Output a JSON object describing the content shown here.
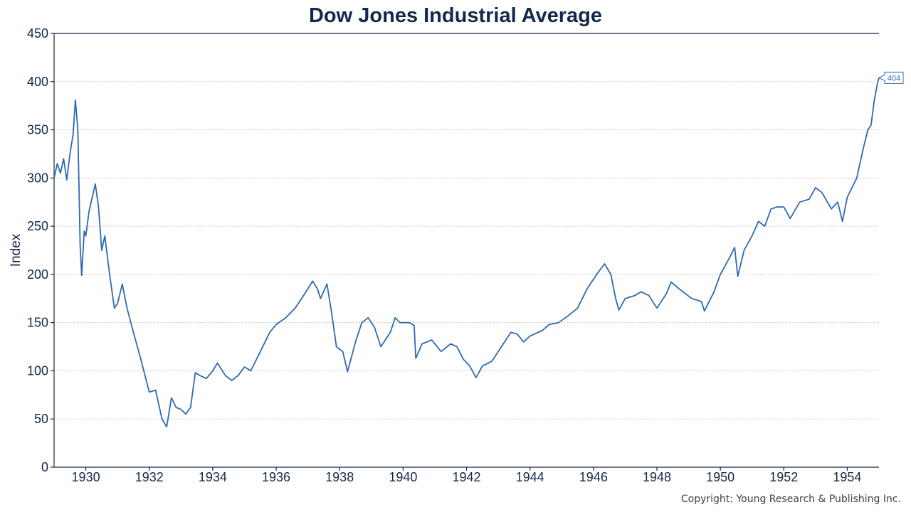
{
  "chart_data": {
    "type": "line",
    "title": "Dow Jones Industrial Average",
    "ylabel": "Index",
    "xlabel": "",
    "xlim": [
      1929.0,
      1955.0
    ],
    "ylim": [
      0,
      450
    ],
    "yticks": [
      0,
      50,
      100,
      150,
      200,
      250,
      300,
      350,
      400,
      450
    ],
    "xticks": [
      1930,
      1932,
      1934,
      1936,
      1938,
      1940,
      1942,
      1944,
      1946,
      1948,
      1950,
      1952,
      1954
    ],
    "grid": true,
    "series": [
      {
        "color": "#2e6ab1",
        "points": [
          [
            1929.0,
            300
          ],
          [
            1929.1,
            315
          ],
          [
            1929.2,
            305
          ],
          [
            1929.3,
            320
          ],
          [
            1929.4,
            298
          ],
          [
            1929.5,
            325
          ],
          [
            1929.6,
            345
          ],
          [
            1929.67,
            381
          ],
          [
            1929.75,
            350
          ],
          [
            1929.82,
            230
          ],
          [
            1929.87,
            199
          ],
          [
            1929.95,
            245
          ],
          [
            1930.0,
            240
          ],
          [
            1930.1,
            265
          ],
          [
            1930.3,
            294
          ],
          [
            1930.4,
            270
          ],
          [
            1930.5,
            225
          ],
          [
            1930.6,
            240
          ],
          [
            1930.75,
            200
          ],
          [
            1930.9,
            165
          ],
          [
            1931.0,
            170
          ],
          [
            1931.15,
            190
          ],
          [
            1931.3,
            165
          ],
          [
            1931.5,
            140
          ],
          [
            1931.75,
            110
          ],
          [
            1932.0,
            78
          ],
          [
            1932.2,
            80
          ],
          [
            1932.4,
            50
          ],
          [
            1932.55,
            42
          ],
          [
            1932.7,
            72
          ],
          [
            1932.85,
            62
          ],
          [
            1933.0,
            60
          ],
          [
            1933.15,
            55
          ],
          [
            1933.3,
            62
          ],
          [
            1933.45,
            98
          ],
          [
            1933.6,
            95
          ],
          [
            1933.8,
            92
          ],
          [
            1934.0,
            100
          ],
          [
            1934.15,
            108
          ],
          [
            1934.4,
            95
          ],
          [
            1934.6,
            90
          ],
          [
            1934.8,
            95
          ],
          [
            1935.0,
            104
          ],
          [
            1935.2,
            100
          ],
          [
            1935.5,
            120
          ],
          [
            1935.8,
            140
          ],
          [
            1936.0,
            148
          ],
          [
            1936.3,
            155
          ],
          [
            1936.6,
            165
          ],
          [
            1936.9,
            180
          ],
          [
            1937.15,
            193
          ],
          [
            1937.3,
            185
          ],
          [
            1937.4,
            175
          ],
          [
            1937.6,
            190
          ],
          [
            1937.75,
            160
          ],
          [
            1937.9,
            125
          ],
          [
            1938.1,
            120
          ],
          [
            1938.25,
            99
          ],
          [
            1938.5,
            130
          ],
          [
            1938.7,
            150
          ],
          [
            1938.9,
            155
          ],
          [
            1939.1,
            145
          ],
          [
            1939.3,
            125
          ],
          [
            1939.6,
            140
          ],
          [
            1939.75,
            155
          ],
          [
            1939.9,
            150
          ],
          [
            1940.2,
            150
          ],
          [
            1940.35,
            147
          ],
          [
            1940.4,
            113
          ],
          [
            1940.6,
            128
          ],
          [
            1940.9,
            132
          ],
          [
            1941.2,
            120
          ],
          [
            1941.5,
            128
          ],
          [
            1941.7,
            125
          ],
          [
            1941.9,
            112
          ],
          [
            1942.1,
            105
          ],
          [
            1942.3,
            93
          ],
          [
            1942.5,
            105
          ],
          [
            1942.8,
            110
          ],
          [
            1943.0,
            120
          ],
          [
            1943.4,
            140
          ],
          [
            1943.6,
            138
          ],
          [
            1943.8,
            130
          ],
          [
            1944.0,
            136
          ],
          [
            1944.4,
            142
          ],
          [
            1944.6,
            148
          ],
          [
            1944.9,
            150
          ],
          [
            1945.2,
            157
          ],
          [
            1945.5,
            165
          ],
          [
            1945.8,
            185
          ],
          [
            1946.1,
            200
          ],
          [
            1946.35,
            211
          ],
          [
            1946.55,
            200
          ],
          [
            1946.7,
            175
          ],
          [
            1946.8,
            163
          ],
          [
            1947.0,
            175
          ],
          [
            1947.3,
            178
          ],
          [
            1947.5,
            182
          ],
          [
            1947.75,
            178
          ],
          [
            1948.0,
            165
          ],
          [
            1948.3,
            180
          ],
          [
            1948.45,
            192
          ],
          [
            1948.7,
            185
          ],
          [
            1948.9,
            180
          ],
          [
            1949.1,
            175
          ],
          [
            1949.4,
            172
          ],
          [
            1949.5,
            162
          ],
          [
            1949.8,
            182
          ],
          [
            1950.0,
            200
          ],
          [
            1950.3,
            218
          ],
          [
            1950.45,
            228
          ],
          [
            1950.55,
            198
          ],
          [
            1950.75,
            225
          ],
          [
            1951.0,
            240
          ],
          [
            1951.2,
            255
          ],
          [
            1951.4,
            250
          ],
          [
            1951.6,
            268
          ],
          [
            1951.8,
            270
          ],
          [
            1952.0,
            270
          ],
          [
            1952.2,
            258
          ],
          [
            1952.5,
            275
          ],
          [
            1952.8,
            278
          ],
          [
            1953.0,
            290
          ],
          [
            1953.2,
            285
          ],
          [
            1953.5,
            268
          ],
          [
            1953.7,
            275
          ],
          [
            1953.85,
            255
          ],
          [
            1954.0,
            280
          ],
          [
            1954.3,
            300
          ],
          [
            1954.5,
            330
          ],
          [
            1954.65,
            350
          ],
          [
            1954.75,
            355
          ],
          [
            1954.85,
            380
          ],
          [
            1954.95,
            398
          ],
          [
            1955.0,
            404
          ]
        ]
      }
    ],
    "annotations": [
      {
        "x": 1955.0,
        "y": 404,
        "text": "404"
      }
    ]
  },
  "footer": {
    "copyright": "Copyright: Young Research & Publishing Inc."
  }
}
